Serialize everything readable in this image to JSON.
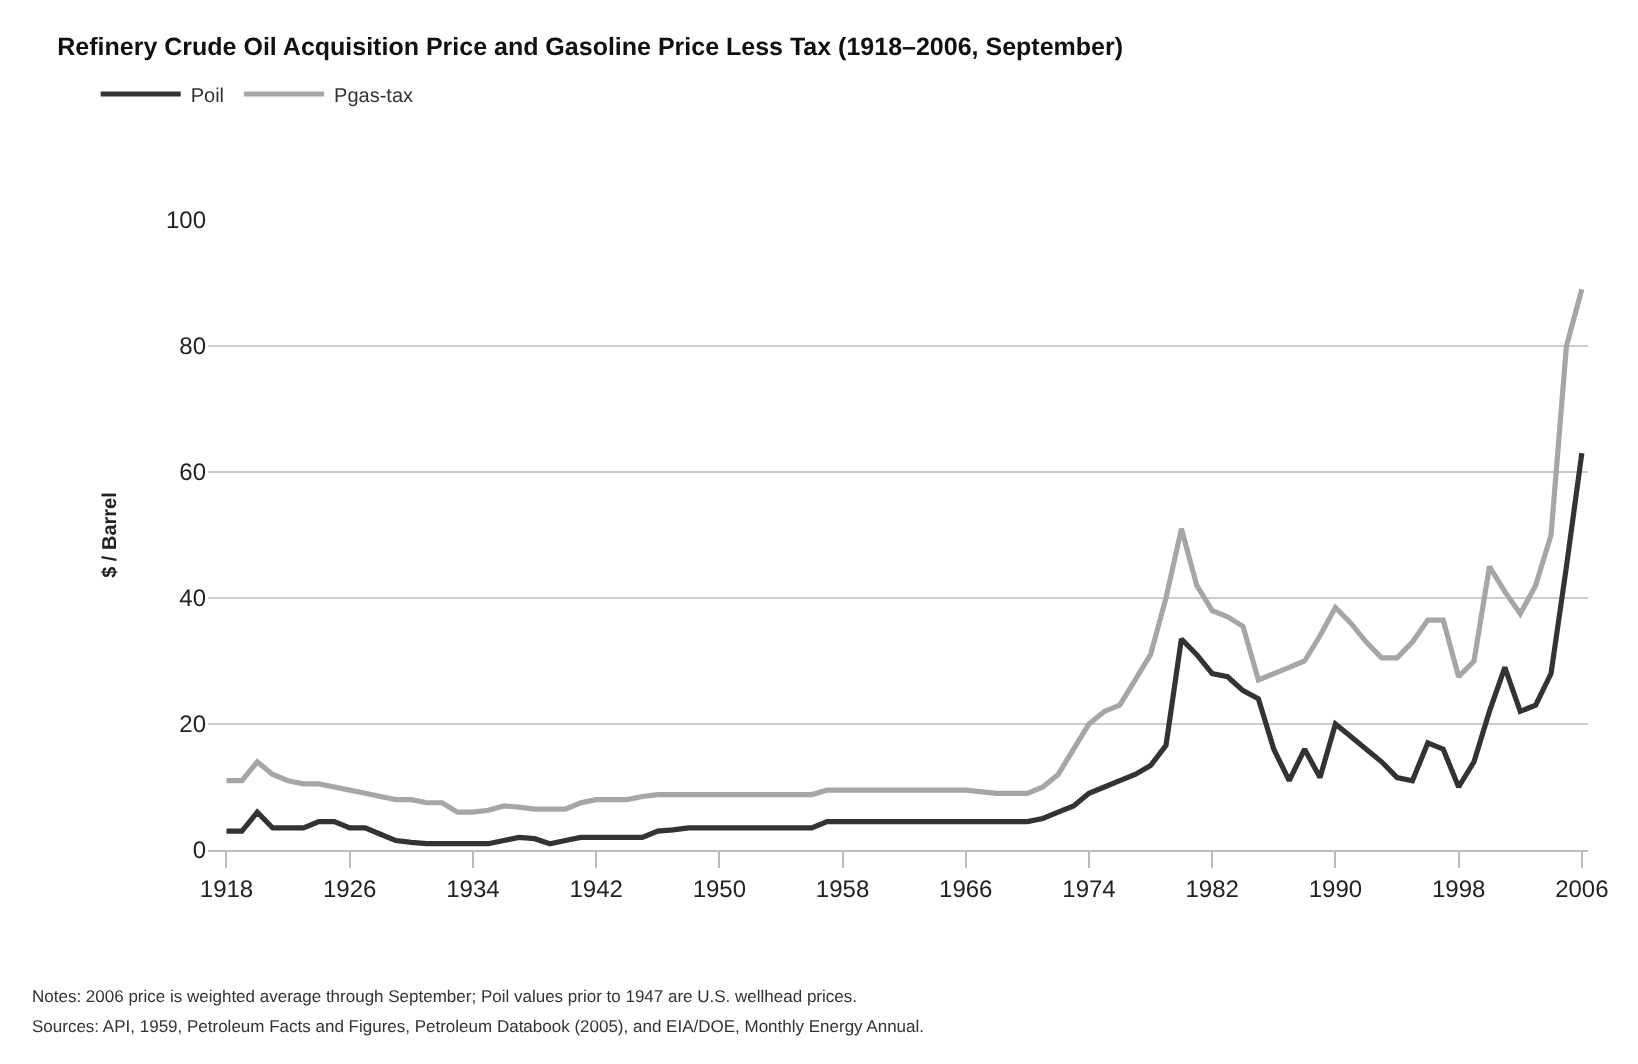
{
  "chart_data": {
    "type": "line",
    "title": "Refinery Crude Oil Acquisition Price and Gasoline Price Less Tax (1918–2006, September)",
    "ylabel": "$ / Barrel",
    "x": [
      1918,
      1919,
      1920,
      1921,
      1922,
      1923,
      1924,
      1925,
      1926,
      1927,
      1928,
      1929,
      1930,
      1931,
      1932,
      1933,
      1934,
      1935,
      1936,
      1937,
      1938,
      1939,
      1940,
      1941,
      1942,
      1943,
      1944,
      1945,
      1946,
      1947,
      1948,
      1950,
      1956,
      1957,
      1958,
      1962,
      1966,
      1968,
      1970,
      1971,
      1972,
      1973,
      1974,
      1975,
      1976,
      1977,
      1978,
      1979,
      1980,
      1981,
      1982,
      1983,
      1984,
      1985,
      1986,
      1987,
      1988,
      1989,
      1990,
      1991,
      1992,
      1993,
      1994,
      1995,
      1996,
      1997,
      1998,
      1999,
      2000,
      2001,
      2002,
      2003,
      2004,
      2005,
      2006
    ],
    "series": [
      {
        "name": "Poil",
        "color": "#333333",
        "values": [
          3,
          3,
          6,
          3.5,
          3.5,
          3.5,
          4.5,
          4.5,
          3.5,
          3.5,
          2.5,
          1.5,
          1.2,
          1,
          1,
          1,
          1,
          1,
          1.5,
          2,
          1.8,
          1,
          1.5,
          2,
          2,
          2,
          2,
          2,
          3,
          3.2,
          3.5,
          3.5,
          3.5,
          4.5,
          4.5,
          4.5,
          4.5,
          4.5,
          4.5,
          5,
          6,
          7,
          9,
          10,
          11,
          12,
          13.4,
          16.6,
          33.5,
          31,
          28,
          27.5,
          25.3,
          24,
          16,
          11,
          16,
          11.5,
          20,
          18,
          16,
          14,
          11.5,
          11,
          17,
          16,
          10,
          14,
          22,
          29,
          22,
          23,
          28,
          45,
          63
        ]
      },
      {
        "name": "Pgas-tax",
        "color": "#a6a6a6",
        "values": [
          11,
          11,
          14,
          12,
          11,
          10.5,
          10.5,
          10,
          9.5,
          9,
          8.5,
          8,
          8,
          7.5,
          7.5,
          6,
          6,
          6.3,
          7,
          6.8,
          6.5,
          6.5,
          6.5,
          7.5,
          8,
          8,
          8,
          8.5,
          8.8,
          8.8,
          8.8,
          8.8,
          8.8,
          9.5,
          9.5,
          9.5,
          9.5,
          9,
          9,
          10,
          12,
          16,
          20,
          22,
          23,
          27,
          31,
          40,
          51,
          42,
          38,
          37,
          35.5,
          27,
          28,
          29,
          30,
          34,
          38.5,
          36,
          33,
          30.5,
          30.5,
          33,
          36.5,
          36.5,
          27.5,
          30,
          45,
          41,
          37.5,
          42,
          50,
          80,
          89
        ]
      }
    ],
    "xlim": [
      1916.8,
      2006.4
    ],
    "xticks": [
      1918,
      1926,
      1934,
      1942,
      1950,
      1958,
      1966,
      1974,
      1982,
      1990,
      1998,
      2006
    ],
    "ylim": [
      0,
      100
    ],
    "yticks": [
      0,
      20,
      40,
      60,
      80,
      100
    ],
    "grid": "y",
    "legend": "top left",
    "marker": "none",
    "line_style": "solid",
    "annotations": [
      "Notes: 2006 price is weighted average through September; Poil values prior to 1947 are U.S. wellhead prices.",
      "Sources: API, 1959, Petroleum Facts and Figures, Petroleum Databook (2005), and EIA/DOE, Monthly Energy Annual."
    ]
  }
}
